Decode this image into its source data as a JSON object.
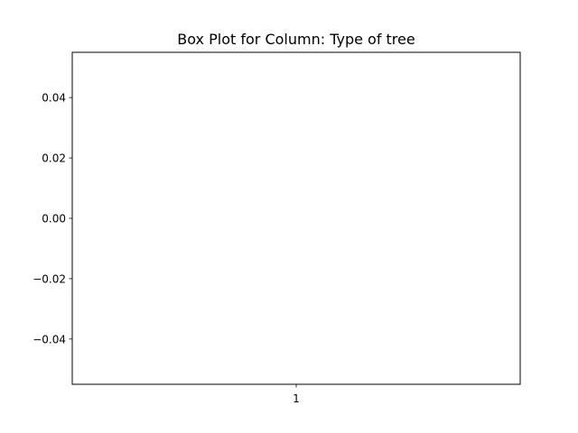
{
  "chart_data": {
    "type": "box",
    "title": "Box Plot for Column: Type of tree",
    "xlabel": "",
    "ylabel": "",
    "categories": [
      "1"
    ],
    "series": [],
    "ylim": [
      -0.055,
      0.055
    ],
    "y_ticks": [
      -0.04,
      -0.02,
      0.0,
      0.02,
      0.04
    ],
    "y_tick_labels": [
      "−0.04",
      "−0.02",
      "0.00",
      "0.02",
      "0.04"
    ],
    "grid": false,
    "colors": {
      "axes": "#000000",
      "background": "#ffffff"
    }
  }
}
